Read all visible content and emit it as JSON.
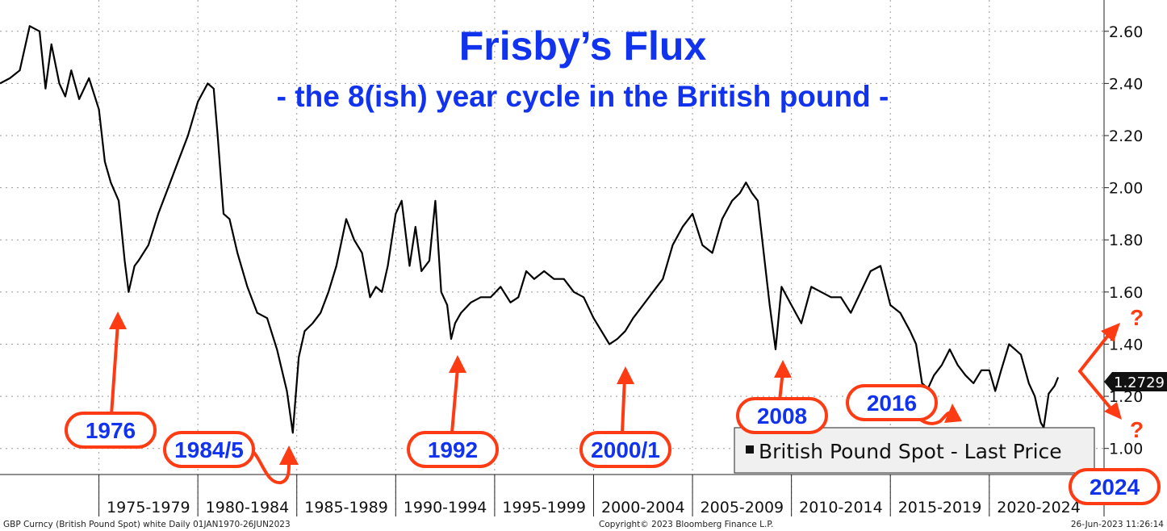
{
  "chart_data": {
    "type": "line",
    "title": "Frisby’s Flux",
    "subtitle": "- the 8(ish) year cycle in the British pound -",
    "series": [
      {
        "name": "British Pound Spot - Last Price",
        "x": [
          1970.0,
          1970.5,
          1971.0,
          1971.5,
          1972.0,
          1972.3,
          1972.6,
          1973.0,
          1973.3,
          1973.6,
          1974.0,
          1974.5,
          1975.0,
          1975.3,
          1975.6,
          1976.0,
          1976.3,
          1976.5,
          1976.8,
          1977.0,
          1977.5,
          1978.0,
          1978.5,
          1979.0,
          1979.5,
          1980.0,
          1980.5,
          1980.8,
          1981.0,
          1981.3,
          1981.6,
          1982.0,
          1982.5,
          1983.0,
          1983.5,
          1984.0,
          1984.5,
          1984.8,
          1985.1,
          1985.4,
          1985.8,
          1986.2,
          1986.6,
          1987.0,
          1987.5,
          1987.9,
          1988.3,
          1988.7,
          1989.0,
          1989.3,
          1989.6,
          1990.0,
          1990.3,
          1990.7,
          1991.0,
          1991.3,
          1991.7,
          1992.0,
          1992.3,
          1992.6,
          1992.8,
          1993.0,
          1993.3,
          1993.8,
          1994.3,
          1994.8,
          1995.3,
          1995.8,
          1996.2,
          1996.6,
          1997.0,
          1997.5,
          1998.0,
          1998.5,
          1999.0,
          1999.5,
          2000.0,
          2000.4,
          2000.8,
          2001.2,
          2001.6,
          2002.0,
          2002.5,
          2003.0,
          2003.5,
          2004.0,
          2004.5,
          2005.0,
          2005.5,
          2006.0,
          2006.5,
          2007.0,
          2007.4,
          2007.7,
          2008.0,
          2008.3,
          2008.6,
          2008.9,
          2009.2,
          2009.5,
          2010.0,
          2010.5,
          2011.0,
          2011.5,
          2012.0,
          2012.5,
          2013.0,
          2013.5,
          2014.0,
          2014.5,
          2015.0,
          2015.5,
          2016.0,
          2016.3,
          2016.6,
          2016.9,
          2017.2,
          2017.6,
          2018.0,
          2018.4,
          2018.8,
          2019.2,
          2019.6,
          2020.0,
          2020.3,
          2020.6,
          2021.0,
          2021.3,
          2021.6,
          2022.0,
          2022.3,
          2022.6,
          2022.75,
          2023.0,
          2023.3,
          2023.48
        ],
        "values": [
          2.4,
          2.42,
          2.45,
          2.62,
          2.6,
          2.38,
          2.55,
          2.4,
          2.35,
          2.45,
          2.34,
          2.42,
          2.3,
          2.1,
          2.02,
          1.95,
          1.72,
          1.6,
          1.7,
          1.72,
          1.78,
          1.9,
          2.0,
          2.1,
          2.2,
          2.33,
          2.4,
          2.38,
          2.2,
          1.9,
          1.88,
          1.75,
          1.62,
          1.52,
          1.5,
          1.38,
          1.22,
          1.06,
          1.35,
          1.45,
          1.48,
          1.52,
          1.6,
          1.7,
          1.88,
          1.8,
          1.75,
          1.58,
          1.62,
          1.6,
          1.7,
          1.9,
          1.95,
          1.7,
          1.85,
          1.68,
          1.72,
          1.95,
          1.6,
          1.55,
          1.42,
          1.48,
          1.52,
          1.56,
          1.58,
          1.58,
          1.62,
          1.56,
          1.58,
          1.68,
          1.65,
          1.68,
          1.65,
          1.65,
          1.6,
          1.58,
          1.5,
          1.45,
          1.4,
          1.42,
          1.45,
          1.5,
          1.55,
          1.6,
          1.65,
          1.78,
          1.85,
          1.9,
          1.78,
          1.75,
          1.88,
          1.95,
          1.98,
          2.02,
          1.98,
          1.95,
          1.75,
          1.55,
          1.38,
          1.62,
          1.55,
          1.48,
          1.62,
          1.6,
          1.58,
          1.58,
          1.52,
          1.6,
          1.68,
          1.7,
          1.55,
          1.52,
          1.45,
          1.4,
          1.25,
          1.23,
          1.28,
          1.32,
          1.38,
          1.32,
          1.28,
          1.25,
          1.3,
          1.3,
          1.22,
          1.3,
          1.4,
          1.38,
          1.36,
          1.25,
          1.2,
          1.1,
          1.08,
          1.21,
          1.24,
          1.2729
        ]
      }
    ],
    "xlim": [
      1970.0,
      2025.8
    ],
    "ylim": [
      0.9,
      2.72
    ],
    "yticks": [
      1.0,
      1.2,
      1.4,
      1.6,
      1.8,
      2.0,
      2.2,
      2.4,
      2.6
    ],
    "ytick_labels": [
      "1.00",
      "1.20",
      "1.40",
      "1.60",
      "1.80",
      "2.00",
      "2.20",
      "2.40",
      "2.60"
    ],
    "xtick_labels": [
      "1975-1979",
      "1980-1984",
      "1985-1989",
      "1990-1994",
      "1995-1999",
      "2000-2004",
      "2005-2009",
      "2010-2014",
      "2015-2019",
      "2020-2024"
    ],
    "xtick_groups": [
      [
        1975,
        1980
      ],
      [
        1980,
        1985
      ],
      [
        1985,
        1990
      ],
      [
        1990,
        1995
      ],
      [
        1995,
        2000
      ],
      [
        2000,
        2005
      ],
      [
        2005,
        2010
      ],
      [
        2010,
        2015
      ],
      [
        2015,
        2020
      ],
      [
        2020,
        2025
      ]
    ],
    "last_price": "1.2729",
    "legend": "British Pound Spot - Last Price",
    "annotations": [
      {
        "label": "1976",
        "target": [
          1976.5,
          1.6
        ]
      },
      {
        "label": "1984/5",
        "target": [
          1984.8,
          1.06
        ]
      },
      {
        "label": "1992",
        "target": [
          1992.8,
          1.42
        ]
      },
      {
        "label": "2000/1",
        "target": [
          2001.0,
          1.38
        ]
      },
      {
        "label": "2008",
        "target": [
          2008.9,
          1.38
        ]
      },
      {
        "label": "2016",
        "target": [
          2016.9,
          1.2
        ]
      },
      {
        "label": "2024",
        "target": null
      }
    ],
    "question_marks": [
      "?",
      "?"
    ],
    "grid": true,
    "y_axis_position": "right"
  },
  "colors": {
    "title": "#1133ee",
    "annotation": "#ff3b14",
    "line": "#000000",
    "grid": "#999999"
  },
  "footer": {
    "left": "GBP Curncy (British Pound Spot) white  Daily 01JAN1970-26JUN2023",
    "center": "Copyright© 2023 Bloomberg Finance L.P.",
    "right": "26-Jun-2023 11:26:14"
  }
}
